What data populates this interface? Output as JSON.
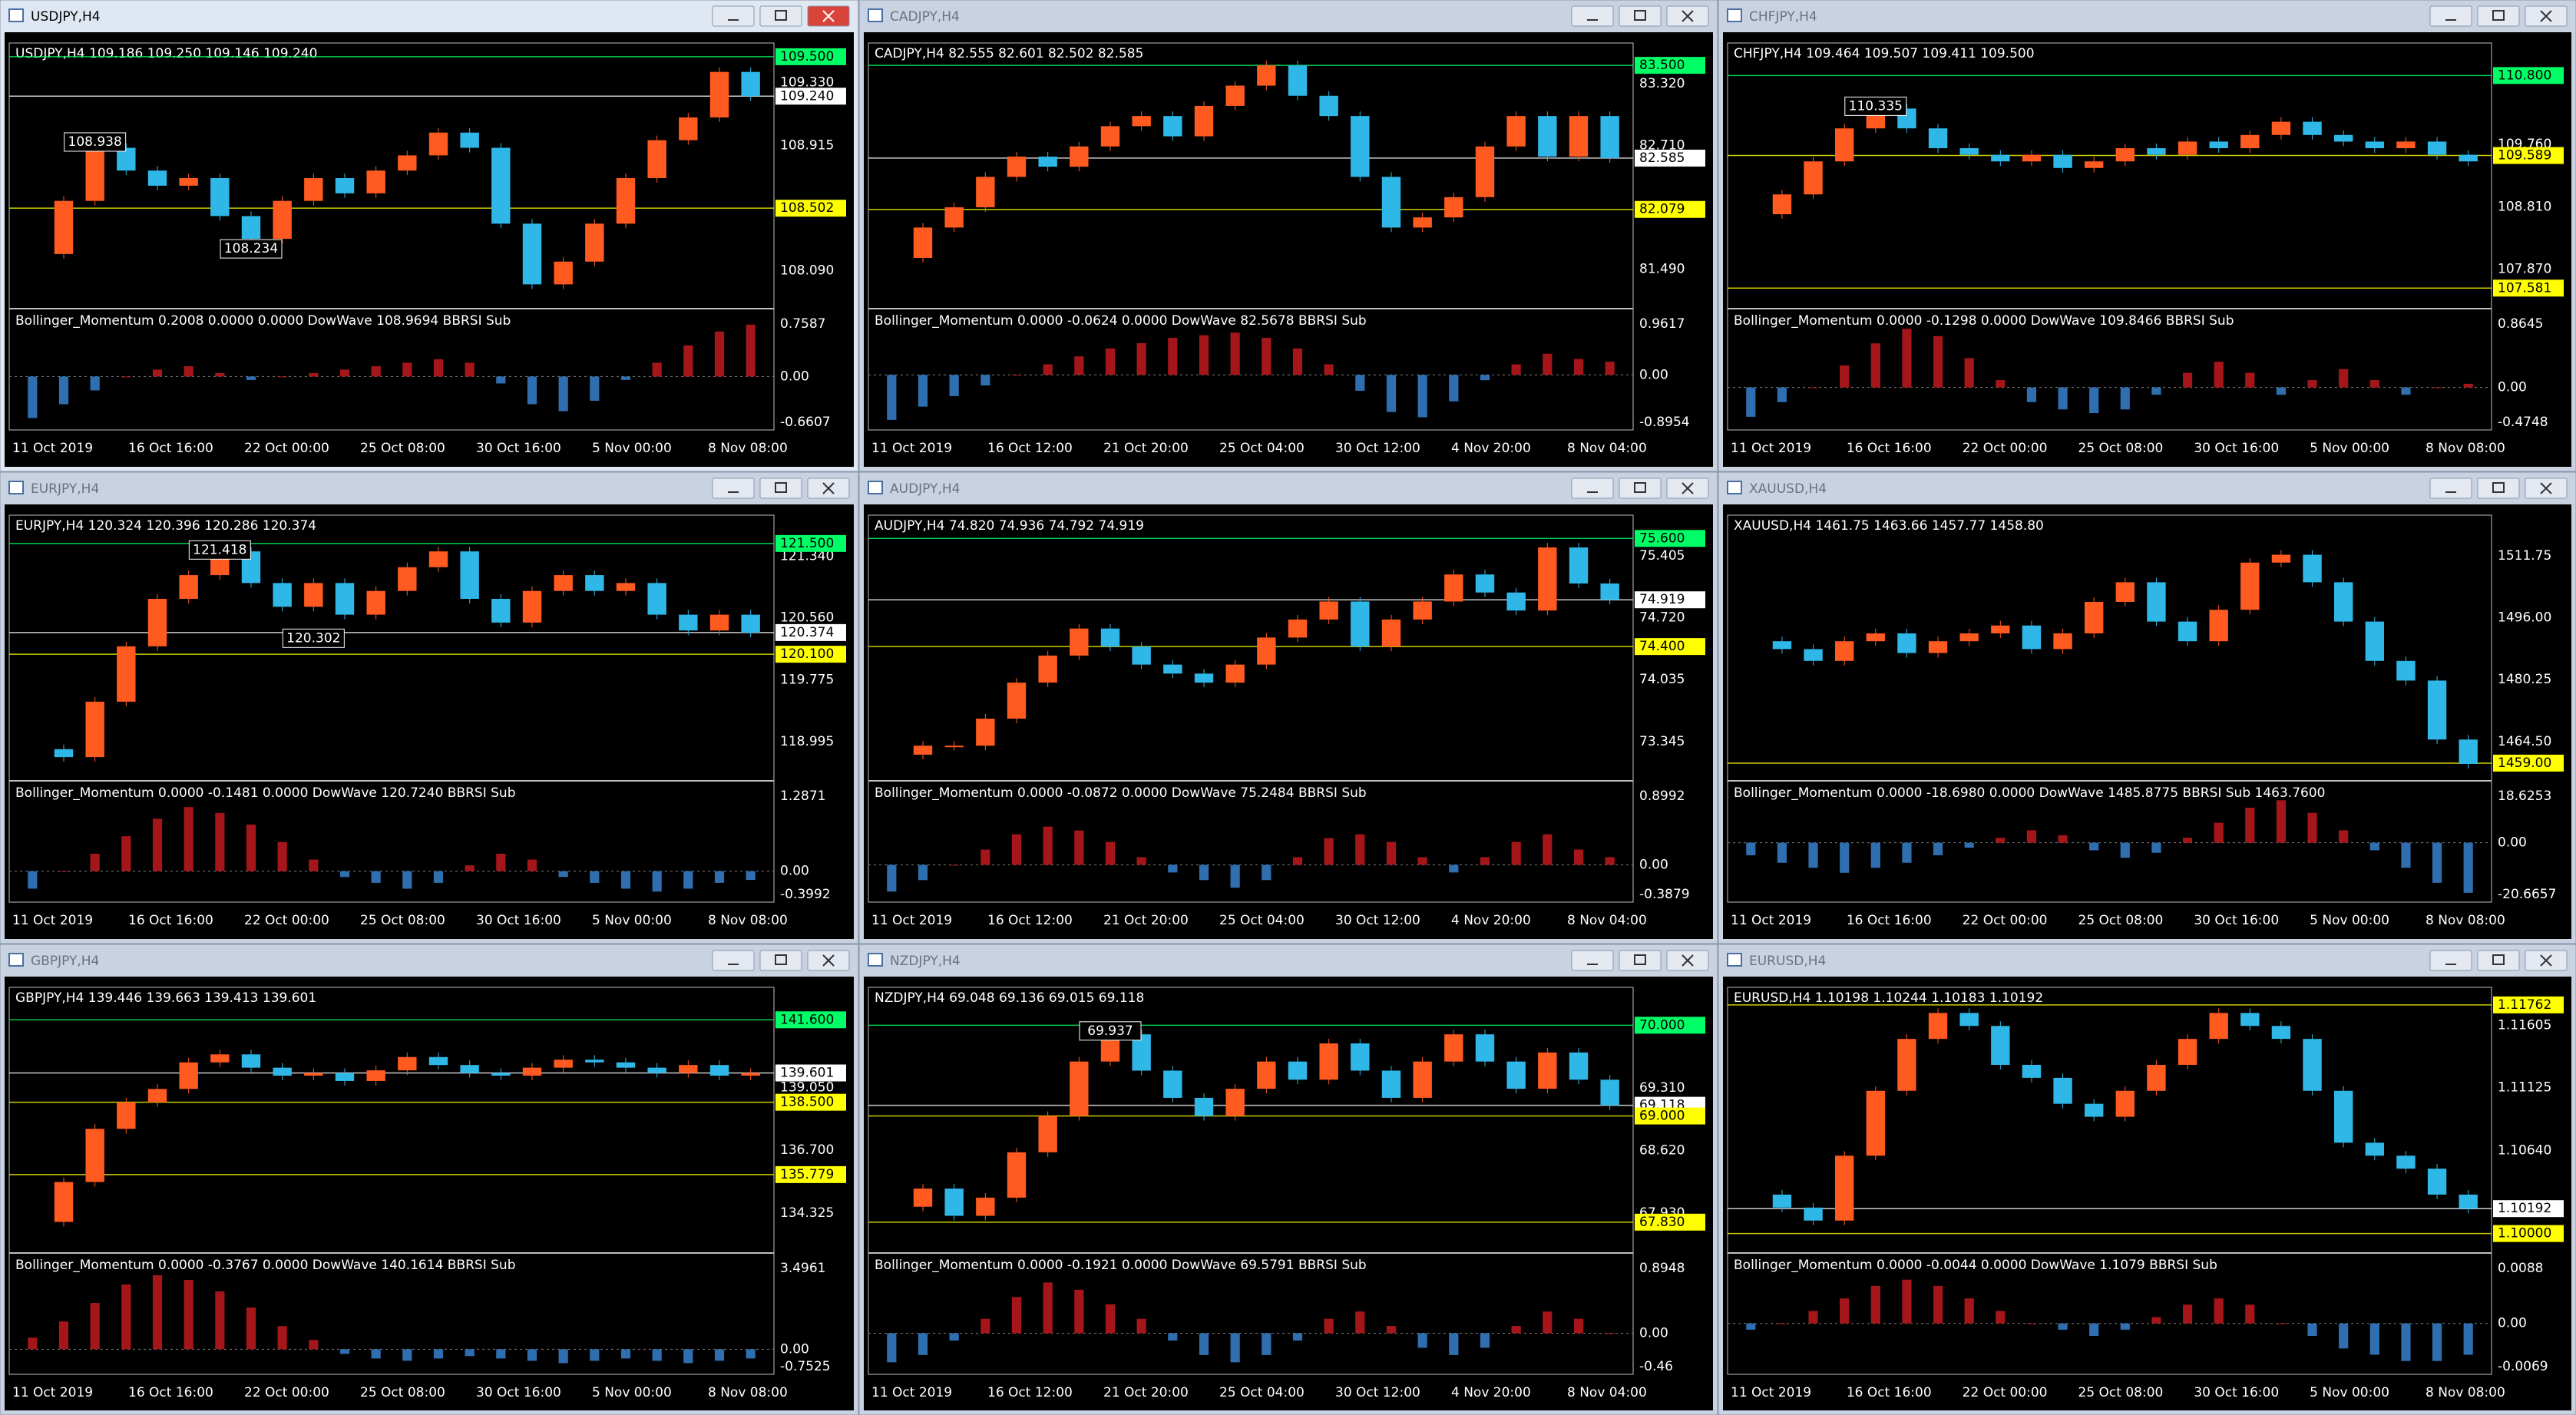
{
  "windows": [
    {
      "title": "USDJPY,H4",
      "active": true,
      "header": "USDJPY,H4  109.186 109.250 109.146 109.240",
      "ylim": [
        107.84,
        109.55
      ],
      "yticks": [
        "109.330",
        "108.915",
        "108.090"
      ],
      "levels": [
        {
          "value": 109.5,
          "label": "109.500",
          "color": "#00ff66"
        },
        {
          "value": 109.24,
          "label": "109.240",
          "color": "#ffffff"
        },
        {
          "value": 108.502,
          "label": "108.502",
          "color": "#ffff00"
        }
      ],
      "annotations": [
        {
          "value": 108.938,
          "label": "108.938",
          "bar": 2
        },
        {
          "value": 108.234,
          "label": "108.234",
          "bar": 7
        }
      ],
      "closes": [
        108.2,
        108.55,
        108.9,
        108.75,
        108.65,
        108.7,
        108.45,
        108.3,
        108.55,
        108.7,
        108.6,
        108.75,
        108.85,
        109.0,
        108.9,
        108.4,
        108.0,
        108.15,
        108.4,
        108.7,
        108.95,
        109.1,
        109.4,
        109.24
      ],
      "indicator": {
        "label": "Bollinger_Momentum 0.2008 0.0000 0.0000  DowWave 108.9694  BBRSI Sub",
        "yticks": [
          "0.7587",
          "0.00",
          "-0.6607"
        ],
        "values": [
          -0.6,
          -0.4,
          -0.2,
          0.0,
          0.1,
          0.15,
          0.05,
          -0.05,
          0.0,
          0.05,
          0.1,
          0.15,
          0.2,
          0.25,
          0.2,
          -0.1,
          -0.4,
          -0.5,
          -0.35,
          -0.05,
          0.2,
          0.45,
          0.65,
          0.75
        ]
      },
      "times": [
        "11 Oct 2019",
        "16 Oct 16:00",
        "22 Oct 00:00",
        "25 Oct 08:00",
        "30 Oct 16:00",
        "5 Nov 00:00",
        "8 Nov 08:00"
      ]
    },
    {
      "title": "CADJPY,H4",
      "header": "CADJPY,H4  82.555 82.601 82.502 82.585",
      "ylim": [
        81.1,
        83.66
      ],
      "yticks": [
        "83.320",
        "82.710",
        "81.490"
      ],
      "levels": [
        {
          "value": 83.5,
          "label": "83.500",
          "color": "#00ff66"
        },
        {
          "value": 82.585,
          "label": "82.585",
          "color": "#ffffff"
        },
        {
          "value": 82.079,
          "label": "82.079",
          "color": "#ffff00"
        }
      ],
      "annotations": [],
      "closes": [
        81.6,
        81.9,
        82.1,
        82.4,
        82.6,
        82.5,
        82.7,
        82.9,
        83.0,
        82.8,
        83.1,
        83.3,
        83.5,
        83.2,
        83.0,
        82.4,
        81.9,
        82.0,
        82.2,
        82.7,
        83.0,
        82.6,
        83.0,
        82.585
      ],
      "indicator": {
        "label": "Bollinger_Momentum 0.0000 -0.0624 0.0000  DowWave 82.5678  BBRSI Sub",
        "yticks": [
          "0.9617",
          "0.00",
          "-0.8954"
        ],
        "values": [
          -0.85,
          -0.6,
          -0.4,
          -0.2,
          0.0,
          0.2,
          0.35,
          0.5,
          0.6,
          0.7,
          0.75,
          0.8,
          0.7,
          0.5,
          0.2,
          -0.3,
          -0.7,
          -0.8,
          -0.5,
          -0.1,
          0.2,
          0.4,
          0.3,
          0.25
        ]
      },
      "times": [
        "11 Oct 2019",
        "16 Oct 12:00",
        "21 Oct 20:00",
        "25 Oct 04:00",
        "30 Oct 12:00",
        "4 Nov 20:00",
        "8 Nov 04:00"
      ]
    },
    {
      "title": "CHFJPY,H4",
      "header": "CHFJPY,H4  109.464 109.507 109.411 109.500",
      "ylim": [
        107.27,
        111.2
      ],
      "yticks": [
        "109.760",
        "108.810",
        "107.870"
      ],
      "levels": [
        {
          "value": 110.8,
          "label": "110.800",
          "color": "#00ff66"
        },
        {
          "value": 109.589,
          "label": "109.589",
          "color": "#ffff00"
        },
        {
          "value": 107.581,
          "label": "107.581",
          "color": "#ffff00"
        }
      ],
      "annotations": [
        {
          "value": 110.335,
          "label": "110.335",
          "bar": 4
        }
      ],
      "closes": [
        108.7,
        109.0,
        109.5,
        110.0,
        110.3,
        110.0,
        109.7,
        109.6,
        109.5,
        109.6,
        109.4,
        109.5,
        109.7,
        109.6,
        109.8,
        109.7,
        109.9,
        110.1,
        109.9,
        109.8,
        109.7,
        109.8,
        109.6,
        109.5
      ],
      "indicator": {
        "label": "Bollinger_Momentum 0.0000 -0.1298 0.0000  DowWave 109.8466  BBRSI Sub",
        "yticks": [
          "0.8645",
          "0.00",
          "-0.4748"
        ],
        "values": [
          -0.4,
          -0.2,
          0.0,
          0.3,
          0.6,
          0.8,
          0.7,
          0.4,
          0.1,
          -0.2,
          -0.3,
          -0.35,
          -0.3,
          -0.1,
          0.2,
          0.35,
          0.2,
          -0.1,
          0.1,
          0.25,
          0.1,
          -0.1,
          0.0,
          0.05
        ]
      },
      "times": [
        "11 Oct 2019",
        "16 Oct 16:00",
        "22 Oct 00:00",
        "25 Oct 08:00",
        "30 Oct 16:00",
        "5 Nov 00:00",
        "8 Nov 08:00"
      ]
    },
    {
      "title": "EURJPY,H4",
      "header": "EURJPY,H4  120.324 120.396 120.286 120.374",
      "ylim": [
        118.5,
        121.78
      ],
      "yticks": [
        "121.340",
        "120.560",
        "119.775",
        "118.995"
      ],
      "levels": [
        {
          "value": 121.5,
          "label": "121.500",
          "color": "#00ff66"
        },
        {
          "value": 120.374,
          "label": "120.374",
          "color": "#ffffff"
        },
        {
          "value": 120.1,
          "label": "120.100",
          "color": "#ffff00"
        }
      ],
      "annotations": [
        {
          "value": 121.418,
          "label": "121.418",
          "bar": 6
        },
        {
          "value": 120.302,
          "label": "120.302",
          "bar": 9
        }
      ],
      "closes": [
        118.9,
        118.8,
        119.5,
        120.2,
        120.8,
        121.1,
        121.4,
        121.0,
        120.7,
        121.0,
        120.6,
        120.9,
        121.2,
        121.4,
        120.8,
        120.5,
        120.9,
        121.1,
        120.9,
        121.0,
        120.6,
        120.4,
        120.6,
        120.374
      ],
      "indicator": {
        "label": "Bollinger_Momentum 0.0000 -0.1481 0.0000  DowWave 120.7240  BBRSI Sub",
        "yticks": [
          "1.2871",
          "0.00",
          "-0.3992"
        ],
        "values": [
          -0.3,
          0.0,
          0.3,
          0.6,
          0.9,
          1.1,
          1.0,
          0.8,
          0.5,
          0.2,
          -0.1,
          -0.2,
          -0.3,
          -0.2,
          0.1,
          0.3,
          0.2,
          -0.1,
          -0.2,
          -0.3,
          -0.35,
          -0.3,
          -0.2,
          -0.15
        ]
      },
      "times": [
        "11 Oct 2019",
        "16 Oct 16:00",
        "22 Oct 00:00",
        "25 Oct 08:00",
        "30 Oct 16:00",
        "5 Nov 00:00",
        "8 Nov 08:00"
      ]
    },
    {
      "title": "AUDJPY,H4",
      "header": "AUDJPY,H4  74.820 74.936 74.792 74.919",
      "ylim": [
        72.91,
        75.79
      ],
      "yticks": [
        "75.405",
        "74.720",
        "74.035",
        "73.345"
      ],
      "levels": [
        {
          "value": 75.6,
          "label": "75.600",
          "color": "#00ff66"
        },
        {
          "value": 74.919,
          "label": "74.919",
          "color": "#ffffff"
        },
        {
          "value": 74.4,
          "label": "74.400",
          "color": "#ffff00"
        }
      ],
      "annotations": [],
      "closes": [
        73.2,
        73.3,
        73.3,
        73.6,
        74.0,
        74.3,
        74.6,
        74.4,
        74.2,
        74.1,
        74.0,
        74.2,
        74.5,
        74.7,
        74.9,
        74.4,
        74.7,
        74.9,
        75.2,
        75.0,
        74.8,
        75.5,
        75.1,
        74.919
      ],
      "indicator": {
        "label": "Bollinger_Momentum 0.0000 -0.0872 0.0000  DowWave 75.2484  BBRSI Sub",
        "yticks": [
          "0.8992",
          "0.00",
          "-0.3879"
        ],
        "values": [
          -0.35,
          -0.2,
          0.0,
          0.2,
          0.4,
          0.5,
          0.45,
          0.3,
          0.1,
          -0.1,
          -0.2,
          -0.3,
          -0.2,
          0.1,
          0.35,
          0.4,
          0.3,
          0.1,
          -0.1,
          0.1,
          0.3,
          0.4,
          0.2,
          0.1
        ]
      },
      "times": [
        "11 Oct 2019",
        "16 Oct 12:00",
        "21 Oct 20:00",
        "25 Oct 04:00",
        "30 Oct 12:00",
        "4 Nov 20:00",
        "8 Nov 04:00"
      ]
    },
    {
      "title": "XAUUSD,H4",
      "header": "XAUUSD,H4  1461.75 1463.66 1457.77 1458.80",
      "ylim": [
        1454.5,
        1520.5
      ],
      "yticks": [
        "1511.75",
        "1496.00",
        "1480.25",
        "1464.50"
      ],
      "levels": [
        {
          "value": 1459,
          "label": "1459.00",
          "color": "#ffff00"
        }
      ],
      "annotations": [],
      "closes": [
        1490,
        1488,
        1485,
        1490,
        1492,
        1487,
        1490,
        1492,
        1494,
        1488,
        1492,
        1500,
        1505,
        1495,
        1490,
        1498,
        1510,
        1512,
        1505,
        1495,
        1485,
        1480,
        1465,
        1458.8
      ],
      "indicator": {
        "label": "Bollinger_Momentum 0.0000 -18.6980 0.0000  DowWave 1485.8775  BBRSI Sub 1463.7600",
        "yticks": [
          "18.6253",
          "0.00",
          "-20.6657"
        ],
        "values": [
          -5,
          -8,
          -10,
          -12,
          -10,
          -8,
          -5,
          -2,
          2,
          5,
          3,
          -3,
          -6,
          -4,
          2,
          8,
          14,
          17,
          12,
          5,
          -3,
          -10,
          -16,
          -20
        ]
      },
      "times": [
        "11 Oct 2019",
        "16 Oct 16:00",
        "22 Oct 00:00",
        "25 Oct 08:00",
        "30 Oct 16:00",
        "5 Nov 00:00",
        "8 Nov 08:00"
      ]
    },
    {
      "title": "GBPJPY,H4",
      "header": "GBPJPY,H4  139.446 139.663 139.413 139.601",
      "ylim": [
        132.83,
        142.59
      ],
      "yticks": [
        "139.050",
        "136.700",
        "134.325"
      ],
      "levels": [
        {
          "value": 141.6,
          "label": "141.600",
          "color": "#00ff66"
        },
        {
          "value": 139.601,
          "label": "139.601",
          "color": "#ffffff"
        },
        {
          "value": 138.5,
          "label": "138.500",
          "color": "#ffff00"
        },
        {
          "value": 135.779,
          "label": "135.779",
          "color": "#ffff00"
        }
      ],
      "annotations": [],
      "closes": [
        134.0,
        135.5,
        137.5,
        138.5,
        139.0,
        140.0,
        140.3,
        139.8,
        139.5,
        139.6,
        139.3,
        139.7,
        140.2,
        139.9,
        139.6,
        139.5,
        139.8,
        140.1,
        140.0,
        139.8,
        139.6,
        139.9,
        139.5,
        139.6
      ],
      "indicator": {
        "label": "Bollinger_Momentum 0.0000 -0.3767 0.0000  DowWave 140.1614  BBRSI Sub",
        "yticks": [
          "3.4961",
          "0.00",
          "-0.7525"
        ],
        "values": [
          0.5,
          1.2,
          2.0,
          2.8,
          3.2,
          3.0,
          2.5,
          1.8,
          1.0,
          0.4,
          -0.2,
          -0.4,
          -0.5,
          -0.4,
          -0.3,
          -0.4,
          -0.5,
          -0.6,
          -0.5,
          -0.4,
          -0.5,
          -0.6,
          -0.5,
          -0.4
        ]
      },
      "times": [
        "11 Oct 2019",
        "16 Oct 16:00",
        "22 Oct 00:00",
        "25 Oct 08:00",
        "30 Oct 16:00",
        "5 Nov 00:00",
        "8 Nov 08:00"
      ]
    },
    {
      "title": "NZDJPY,H4",
      "header": "NZDJPY,H4  69.048 69.136 69.015 69.118",
      "ylim": [
        67.49,
        70.35
      ],
      "yticks": [
        "69.310",
        "68.620",
        "67.930"
      ],
      "levels": [
        {
          "value": 70,
          "label": "70.000",
          "color": "#00ff66"
        },
        {
          "value": 69.118,
          "label": "69.118",
          "color": "#ffffff"
        },
        {
          "value": 69,
          "label": "69.000",
          "color": "#ffff00"
        },
        {
          "value": 67.83,
          "label": "67.830",
          "color": "#ffff00"
        }
      ],
      "annotations": [
        {
          "value": 69.937,
          "label": "69.937",
          "bar": 7
        }
      ],
      "closes": [
        68.0,
        68.2,
        67.9,
        68.1,
        68.6,
        69.0,
        69.6,
        69.9,
        69.5,
        69.2,
        69.0,
        69.3,
        69.6,
        69.4,
        69.8,
        69.5,
        69.2,
        69.6,
        69.9,
        69.6,
        69.3,
        69.7,
        69.4,
        69.118
      ],
      "indicator": {
        "label": "Bollinger_Momentum 0.0000 -0.1921 0.0000  DowWave 69.5791  BBRSI Sub",
        "yticks": [
          "0.8948",
          "0.00",
          "-0.46"
        ],
        "values": [
          -0.4,
          -0.3,
          -0.1,
          0.2,
          0.5,
          0.7,
          0.6,
          0.4,
          0.2,
          -0.1,
          -0.3,
          -0.4,
          -0.3,
          -0.1,
          0.2,
          0.3,
          0.1,
          -0.2,
          -0.3,
          -0.2,
          0.1,
          0.3,
          0.2,
          0.0
        ]
      },
      "times": [
        "11 Oct 2019",
        "16 Oct 12:00",
        "21 Oct 20:00",
        "25 Oct 04:00",
        "30 Oct 12:00",
        "4 Nov 20:00",
        "8 Nov 04:00"
      ]
    },
    {
      "title": "EURUSD,H4",
      "header": "EURUSD,H4  1.10198 1.10244 1.10183 1.10192",
      "ylim": [
        1.0985,
        1.1185
      ],
      "yticks": [
        "1.11605",
        "1.11125",
        "1.10640"
      ],
      "levels": [
        {
          "value": 1.11762,
          "label": "1.11762",
          "color": "#ffff00"
        },
        {
          "value": 1.10192,
          "label": "1.10192",
          "color": "#ffffff"
        },
        {
          "value": 1.1,
          "label": "1.10000",
          "color": "#ffff00"
        }
      ],
      "annotations": [],
      "closes": [
        1.103,
        1.102,
        1.101,
        1.106,
        1.111,
        1.115,
        1.117,
        1.116,
        1.113,
        1.112,
        1.11,
        1.109,
        1.111,
        1.113,
        1.115,
        1.117,
        1.116,
        1.115,
        1.111,
        1.107,
        1.106,
        1.105,
        1.103,
        1.10192
      ],
      "indicator": {
        "label": "Bollinger_Momentum 0.0000 -0.0044 0.0000  DowWave 1.1079  BBRSI Sub",
        "yticks": [
          "0.0088",
          "0.00",
          "-0.0069"
        ],
        "values": [
          -0.001,
          0.0,
          0.002,
          0.004,
          0.006,
          0.007,
          0.006,
          0.004,
          0.002,
          0.0,
          -0.001,
          -0.002,
          -0.001,
          0.001,
          0.003,
          0.004,
          0.003,
          0.0,
          -0.002,
          -0.004,
          -0.005,
          -0.006,
          -0.006,
          -0.005
        ]
      },
      "times": [
        "11 Oct 2019",
        "16 Oct 16:00",
        "22 Oct 00:00",
        "25 Oct 08:00",
        "30 Oct 16:00",
        "5 Nov 00:00",
        "8 Nov 08:00"
      ]
    }
  ]
}
